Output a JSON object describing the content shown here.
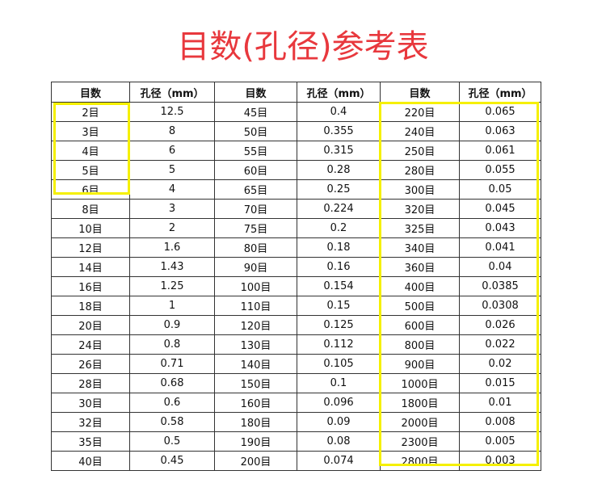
{
  "title": "目数(孔径)参考表",
  "table": {
    "header": [
      "目数",
      "孔径（mm）",
      "目数",
      "孔径（mm）",
      "目数",
      "孔径（mm）"
    ],
    "rows": [
      [
        "2目",
        "12.5",
        "45目",
        "0.4",
        "220目",
        "0.065"
      ],
      [
        "3目",
        "8",
        "50目",
        "0.355",
        "240目",
        "0.063"
      ],
      [
        "4目",
        "6",
        "55目",
        "0.315",
        "250目",
        "0.061"
      ],
      [
        "5目",
        "5",
        "60目",
        "0.28",
        "280目",
        "0.055"
      ],
      [
        "6目",
        "4",
        "65目",
        "0.25",
        "300目",
        "0.05"
      ],
      [
        "8目",
        "3",
        "70目",
        "0.224",
        "320目",
        "0.045"
      ],
      [
        "10目",
        "2",
        "75目",
        "0.2",
        "325目",
        "0.043"
      ],
      [
        "12目",
        "1.6",
        "80目",
        "0.18",
        "340目",
        "0.041"
      ],
      [
        "14目",
        "1.43",
        "90目",
        "0.16",
        "360目",
        "0.04"
      ],
      [
        "16目",
        "1.25",
        "100目",
        "0.154",
        "400目",
        "0.0385"
      ],
      [
        "18目",
        "1",
        "110目",
        "0.15",
        "500目",
        "0.0308"
      ],
      [
        "20目",
        "0.9",
        "120目",
        "0.125",
        "600目",
        "0.026"
      ],
      [
        "24目",
        "0.8",
        "130目",
        "0.112",
        "800目",
        "0.022"
      ],
      [
        "26目",
        "0.71",
        "140目",
        "0.105",
        "900目",
        "0.02"
      ],
      [
        "28目",
        "0.68",
        "150目",
        "0.1",
        "1000目",
        "0.015"
      ],
      [
        "30目",
        "0.6",
        "160目",
        "0.096",
        "1800目",
        "0.01"
      ],
      [
        "32目",
        "0.58",
        "180目",
        "0.09",
        "2000目",
        "0.008"
      ],
      [
        "35目",
        "0.5",
        "190目",
        "0.08",
        "2300目",
        "0.005"
      ],
      [
        "40目",
        "0.45",
        "200目",
        "0.074",
        "2800目",
        "0.003"
      ]
    ]
  }
}
